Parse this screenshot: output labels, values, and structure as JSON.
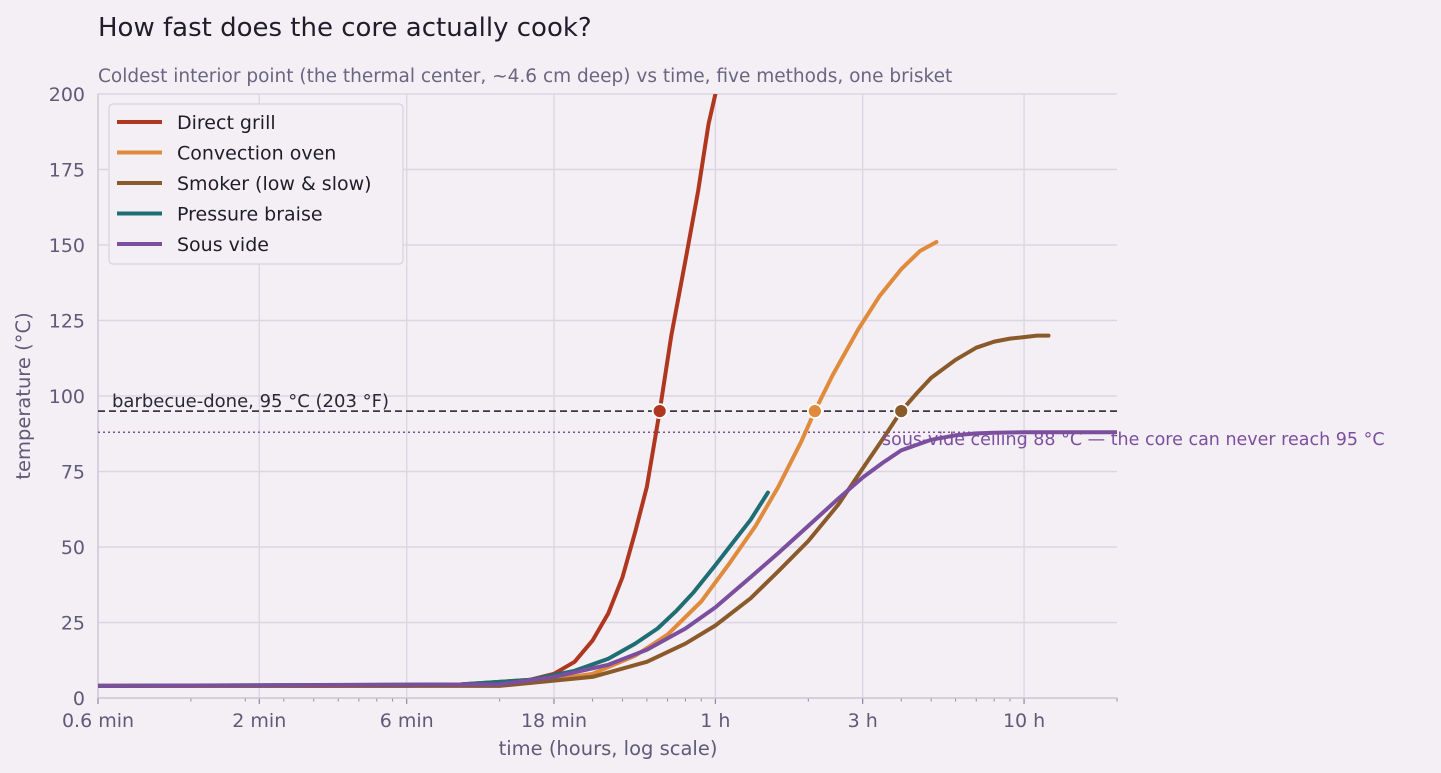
{
  "chart_data": {
    "type": "line",
    "title": "How fast does the core actually cook?",
    "subtitle": "Coldest interior point (the thermal center, ~4.6 cm deep) vs time, five methods, one brisket",
    "xlabel": "time (hours, log scale)",
    "ylabel": "temperature (°C)",
    "x_scale": "log",
    "x_unit": "hours",
    "xlim": [
      0.01,
      20
    ],
    "ylim": [
      0,
      200
    ],
    "grid": true,
    "legend_position": "upper-left",
    "x_ticks": [
      {
        "value": 0.01,
        "label": "0.6 min"
      },
      {
        "value": 0.0333,
        "label": "2 min"
      },
      {
        "value": 0.1,
        "label": "6 min"
      },
      {
        "value": 0.3,
        "label": "18 min"
      },
      {
        "value": 1,
        "label": "1 h"
      },
      {
        "value": 3,
        "label": "3 h"
      },
      {
        "value": 10,
        "label": "10 h"
      }
    ],
    "y_ticks": [
      0,
      25,
      50,
      75,
      100,
      125,
      150,
      175,
      200
    ],
    "series": [
      {
        "name": "Direct grill",
        "color": "#b0371f",
        "x": [
          0.01,
          0.05,
          0.15,
          0.25,
          0.3,
          0.35,
          0.4,
          0.45,
          0.5,
          0.55,
          0.6,
          0.66,
          0.72,
          0.8,
          0.88,
          0.95,
          1.0
        ],
        "y": [
          4,
          4,
          4.5,
          6,
          8,
          12,
          19,
          28,
          40,
          55,
          70,
          95,
          120,
          145,
          168,
          190,
          200
        ],
        "marker": {
          "x": 0.66,
          "y": 95
        }
      },
      {
        "name": "Convection oven",
        "color": "#e08a3c",
        "x": [
          0.01,
          0.1,
          0.25,
          0.4,
          0.55,
          0.7,
          0.9,
          1.1,
          1.35,
          1.6,
          1.9,
          2.1,
          2.4,
          2.9,
          3.4,
          4.0,
          4.6,
          5.2
        ],
        "y": [
          4,
          4,
          5,
          8,
          14,
          21,
          32,
          44,
          57,
          70,
          85,
          95,
          107,
          122,
          133,
          142,
          148,
          151
        ],
        "marker": {
          "x": 2.1,
          "y": 95
        }
      },
      {
        "name": "Smoker (low & slow)",
        "color": "#8a5a2b",
        "x": [
          0.01,
          0.2,
          0.4,
          0.6,
          0.8,
          1.0,
          1.3,
          1.6,
          2.0,
          2.5,
          3.0,
          3.5,
          4.0,
          4.5,
          5.0,
          6.0,
          7.0,
          8.0,
          9.0,
          10.0,
          11.0,
          12.0
        ],
        "y": [
          4,
          4,
          7,
          12,
          18,
          24,
          33,
          42,
          52,
          64,
          76,
          86,
          95,
          101,
          106,
          112,
          116,
          118,
          119,
          119.5,
          120,
          120
        ],
        "marker": {
          "x": 4.0,
          "y": 95
        }
      },
      {
        "name": "Pressure braise",
        "color": "#1f6e73",
        "x": [
          0.01,
          0.15,
          0.25,
          0.35,
          0.45,
          0.55,
          0.65,
          0.75,
          0.85,
          1.0,
          1.15,
          1.3,
          1.48
        ],
        "y": [
          4,
          4.5,
          6,
          9,
          13,
          18,
          23,
          29,
          35,
          44,
          52,
          59,
          68
        ]
      },
      {
        "name": "Sous vide",
        "color": "#7b4f9e",
        "x": [
          0.01,
          0.2,
          0.3,
          0.45,
          0.6,
          0.8,
          1.0,
          1.3,
          1.6,
          2.0,
          2.5,
          3.0,
          3.5,
          4.0,
          5.0,
          6.0,
          7.0,
          8.0,
          10.0,
          12.0,
          15.0,
          20.0
        ],
        "y": [
          4,
          4.5,
          7,
          11,
          16,
          23,
          30,
          40,
          48,
          57,
          66,
          73,
          78,
          82,
          85.5,
          87,
          87.6,
          87.8,
          88,
          88,
          88,
          88
        ]
      }
    ],
    "reference_lines": [
      {
        "y": 95,
        "style": "dashed",
        "color": "#3b3946",
        "label": "barbecue-done, 95 °C (203 °F)"
      },
      {
        "y": 88,
        "style": "dotted",
        "color": "#7b4f9e",
        "label": "sous-vide ceiling 88 °C — the core can never reach 95 °C"
      }
    ]
  }
}
